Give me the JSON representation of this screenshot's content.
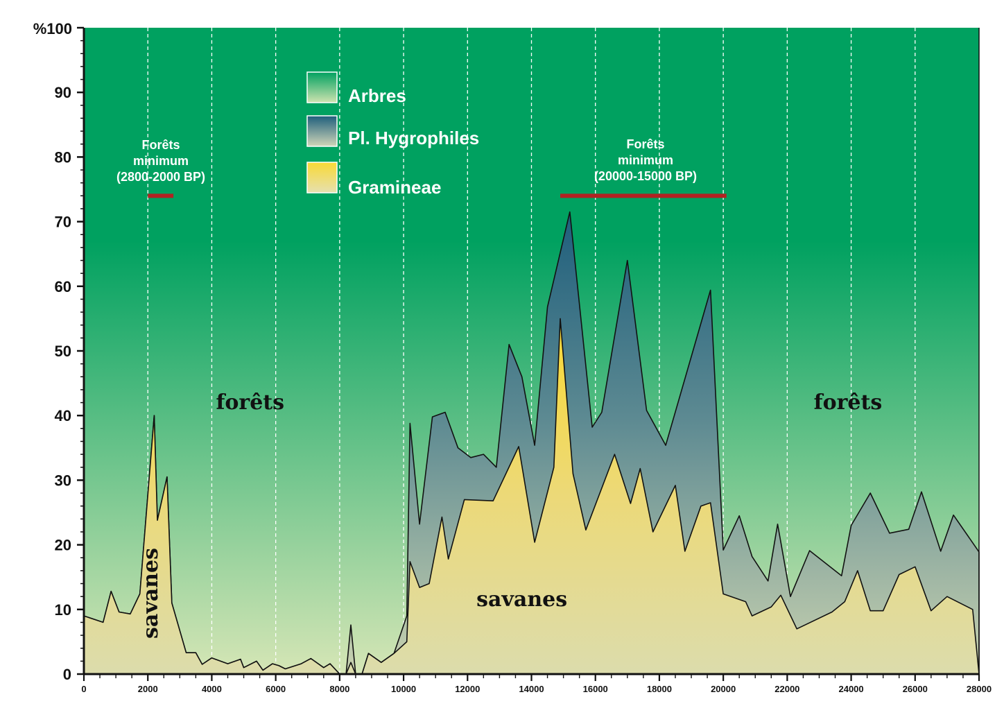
{
  "chart_data": {
    "type": "area",
    "stacked": true,
    "y_axis_title": "%100",
    "xlim": [
      0,
      28000
    ],
    "ylim": [
      0,
      100
    ],
    "x_ticks": [
      0,
      2000,
      4000,
      6000,
      8000,
      10000,
      12000,
      14000,
      16000,
      18000,
      20000,
      22000,
      24000,
      26000,
      28000
    ],
    "y_ticks": [
      0,
      10,
      20,
      30,
      40,
      50,
      60,
      70,
      80,
      90
    ],
    "grid": "vertical dashed white lines",
    "legend_position": "top-center",
    "series": [
      {
        "name": "Arbres",
        "role": "remainder to 100%",
        "color_top": "#00a160",
        "color_bottom": "#d6e6b6"
      },
      {
        "name": "Pl. Hygrophiles",
        "role": "cumulative upper line (Gramineae + Pl. Hygrophiles)",
        "color_top": "#1e5e7c",
        "color_bottom": "#c9d2b0",
        "points": [
          [
            0,
            9
          ],
          [
            600,
            8
          ],
          [
            850,
            12.8
          ],
          [
            1100,
            9.6
          ],
          [
            1450,
            9.3
          ],
          [
            1750,
            12.4
          ],
          [
            2200,
            40
          ],
          [
            2300,
            23.8
          ],
          [
            2600,
            30.5
          ],
          [
            2750,
            11
          ],
          [
            3200,
            3.3
          ],
          [
            3500,
            3.3
          ],
          [
            3700,
            1.5
          ],
          [
            4000,
            2.5
          ],
          [
            4500,
            1.6
          ],
          [
            4900,
            2.3
          ],
          [
            5000,
            1
          ],
          [
            5400,
            2
          ],
          [
            5600,
            0.6
          ],
          [
            5900,
            1.6
          ],
          [
            6100,
            1.3
          ],
          [
            6300,
            0.8
          ],
          [
            6800,
            1.6
          ],
          [
            7100,
            2.4
          ],
          [
            7500,
            1
          ],
          [
            7700,
            1.6
          ],
          [
            8000,
            0
          ],
          [
            8200,
            0
          ],
          [
            8350,
            7.6
          ],
          [
            8500,
            0
          ],
          [
            8700,
            0
          ],
          [
            8900,
            3.2
          ],
          [
            9300,
            1.8
          ],
          [
            9700,
            3.2
          ],
          [
            10100,
            9
          ],
          [
            10200,
            38.8
          ],
          [
            10500,
            23.2
          ],
          [
            10900,
            39.8
          ],
          [
            11300,
            40.5
          ],
          [
            11700,
            35
          ],
          [
            12100,
            33.5
          ],
          [
            12500,
            34
          ],
          [
            12900,
            32
          ],
          [
            13300,
            51
          ],
          [
            13700,
            46
          ],
          [
            14100,
            35.4
          ],
          [
            14500,
            56.8
          ],
          [
            15200,
            71.5
          ],
          [
            15900,
            38.2
          ],
          [
            16200,
            40.5
          ],
          [
            17000,
            64
          ],
          [
            17600,
            40.8
          ],
          [
            18200,
            35.4
          ],
          [
            19600,
            59.4
          ],
          [
            20000,
            19.2
          ],
          [
            20500,
            24.5
          ],
          [
            20900,
            18.2
          ],
          [
            21400,
            14.4
          ],
          [
            21700,
            23.2
          ],
          [
            22100,
            12
          ],
          [
            22700,
            19.1
          ],
          [
            23700,
            15.2
          ],
          [
            24000,
            23
          ],
          [
            24600,
            28
          ],
          [
            25200,
            21.8
          ],
          [
            25800,
            22.4
          ],
          [
            26200,
            28.2
          ],
          [
            26800,
            19
          ],
          [
            27200,
            24.6
          ],
          [
            28000,
            18.9
          ]
        ]
      },
      {
        "name": "Gramineae",
        "role": "bottom layer",
        "color_top": "#f9d935",
        "color_bottom": "#dcdcac",
        "points": [
          [
            0,
            9
          ],
          [
            600,
            8
          ],
          [
            850,
            12.8
          ],
          [
            1100,
            9.6
          ],
          [
            1450,
            9.3
          ],
          [
            1750,
            12.4
          ],
          [
            2200,
            40
          ],
          [
            2300,
            23.8
          ],
          [
            2600,
            30.5
          ],
          [
            2750,
            11
          ],
          [
            3200,
            3.3
          ],
          [
            3500,
            3.3
          ],
          [
            3700,
            1.5
          ],
          [
            4000,
            2.5
          ],
          [
            4500,
            1.6
          ],
          [
            4900,
            2.3
          ],
          [
            5000,
            1
          ],
          [
            5400,
            2
          ],
          [
            5600,
            0.6
          ],
          [
            5900,
            1.6
          ],
          [
            6100,
            1.3
          ],
          [
            6300,
            0.8
          ],
          [
            6800,
            1.6
          ],
          [
            7100,
            2.4
          ],
          [
            7500,
            1
          ],
          [
            7700,
            1.6
          ],
          [
            8000,
            0
          ],
          [
            8200,
            0
          ],
          [
            8350,
            1.8
          ],
          [
            8500,
            0
          ],
          [
            8700,
            0
          ],
          [
            8900,
            3.2
          ],
          [
            9300,
            1.8
          ],
          [
            9700,
            3.2
          ],
          [
            10100,
            5
          ],
          [
            10200,
            17.4
          ],
          [
            10500,
            13.4
          ],
          [
            10800,
            14
          ],
          [
            11200,
            24.3
          ],
          [
            11400,
            17.8
          ],
          [
            11900,
            27
          ],
          [
            12800,
            26.8
          ],
          [
            13600,
            35.2
          ],
          [
            14100,
            20.4
          ],
          [
            14700,
            32
          ],
          [
            14900,
            55
          ],
          [
            15300,
            31
          ],
          [
            15700,
            22.3
          ],
          [
            16600,
            34
          ],
          [
            17100,
            26.4
          ],
          [
            17400,
            31.8
          ],
          [
            17800,
            22
          ],
          [
            18500,
            29.2
          ],
          [
            18800,
            19
          ],
          [
            19300,
            26
          ],
          [
            19600,
            26.5
          ],
          [
            20000,
            12.4
          ],
          [
            20700,
            11.2
          ],
          [
            20900,
            9
          ],
          [
            21500,
            10.4
          ],
          [
            21800,
            12.2
          ],
          [
            22300,
            7
          ],
          [
            23400,
            9.6
          ],
          [
            23800,
            11.2
          ],
          [
            24200,
            16
          ],
          [
            24600,
            9.8
          ],
          [
            25000,
            9.8
          ],
          [
            25500,
            15.4
          ],
          [
            26000,
            16.6
          ],
          [
            26500,
            9.8
          ],
          [
            27000,
            12
          ],
          [
            27800,
            10
          ],
          [
            28000,
            0
          ]
        ]
      }
    ],
    "legend": [
      "Arbres",
      "Pl. Hygrophiles",
      "Gramineae"
    ],
    "periods": [
      {
        "label_lines": [
          "Forêts",
          "minimum",
          "(2800-2000 BP)"
        ],
        "x_start": 2000,
        "x_end": 2800,
        "y": 74,
        "color": "#b22222"
      },
      {
        "label_lines": [
          "Forêts",
          "minimum",
          "(20000-15000 BP)"
        ],
        "x_start": 14900,
        "x_end": 20100,
        "y": 74,
        "color": "#b22222"
      }
    ],
    "zone_labels": [
      {
        "text": "forêts",
        "x": 5200,
        "y": 41
      },
      {
        "text": "forêts",
        "x": 23900,
        "y": 41
      },
      {
        "text": "savanes",
        "x": 13700,
        "y": 10.5
      },
      {
        "text": "savanes",
        "x": 2300,
        "y": 12.5,
        "rotated": true
      }
    ]
  }
}
